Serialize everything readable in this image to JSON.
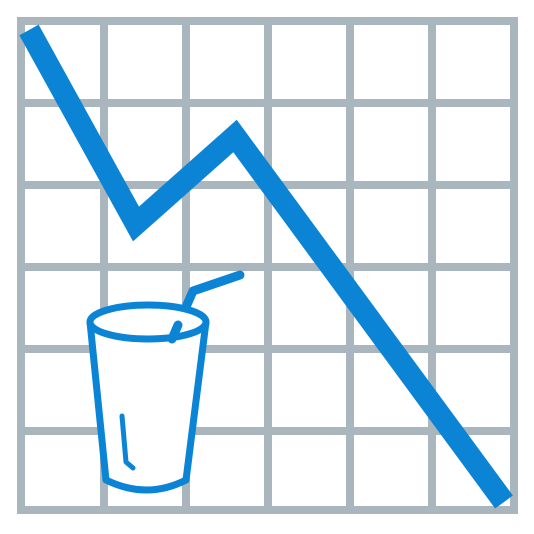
{
  "illustration": {
    "name": "declining-drink-sales-icon",
    "colors": {
      "background": "#ffffff",
      "grid": "#a9b6bd",
      "accent": "#0b84d6"
    },
    "icons": [
      "grid-chart",
      "downward-trend-line",
      "cup-with-straw-icon"
    ]
  }
}
